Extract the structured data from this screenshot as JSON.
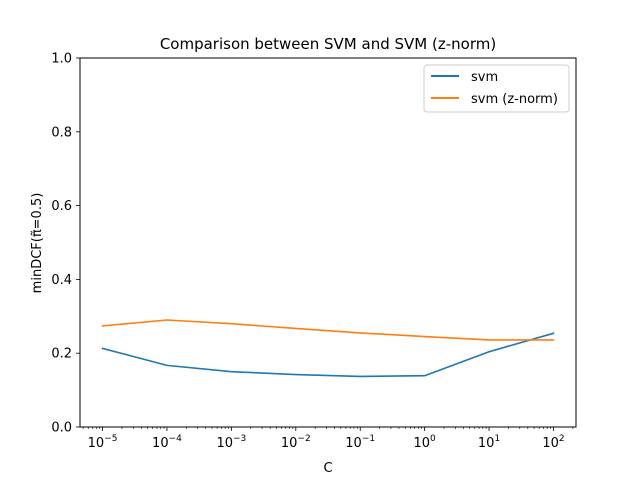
{
  "chart_data": {
    "type": "line",
    "title": "Comparison between SVM and SVM (z-norm)",
    "xlabel": "C",
    "ylabel": "minDCF(π̃=0.5)",
    "x_scale": "log",
    "x": [
      1e-05,
      0.0001,
      0.001,
      0.01,
      0.1,
      1,
      10,
      100
    ],
    "x_ticks": [
      {
        "value": 1e-05,
        "base": "10",
        "exp": "−5"
      },
      {
        "value": 0.0001,
        "base": "10",
        "exp": "−4"
      },
      {
        "value": 0.001,
        "base": "10",
        "exp": "−3"
      },
      {
        "value": 0.01,
        "base": "10",
        "exp": "−2"
      },
      {
        "value": 0.1,
        "base": "10",
        "exp": "−1"
      },
      {
        "value": 1,
        "base": "10",
        "exp": "0"
      },
      {
        "value": 10,
        "base": "10",
        "exp": "1"
      },
      {
        "value": 100,
        "base": "10",
        "exp": "2"
      }
    ],
    "y_ticks": [
      "0.0",
      "0.2",
      "0.4",
      "0.6",
      "0.8",
      "1.0"
    ],
    "ylim": [
      0,
      1
    ],
    "grid": false,
    "legend_position": "top-right",
    "series": [
      {
        "name": "svm",
        "color": "#1f77b4",
        "values": [
          0.213,
          0.167,
          0.15,
          0.142,
          0.137,
          0.139,
          0.204,
          0.254
        ]
      },
      {
        "name": "svm (z-norm)",
        "color": "#ff7f0e",
        "values": [
          0.274,
          0.29,
          0.28,
          0.267,
          0.255,
          0.245,
          0.236,
          0.236
        ]
      }
    ]
  }
}
